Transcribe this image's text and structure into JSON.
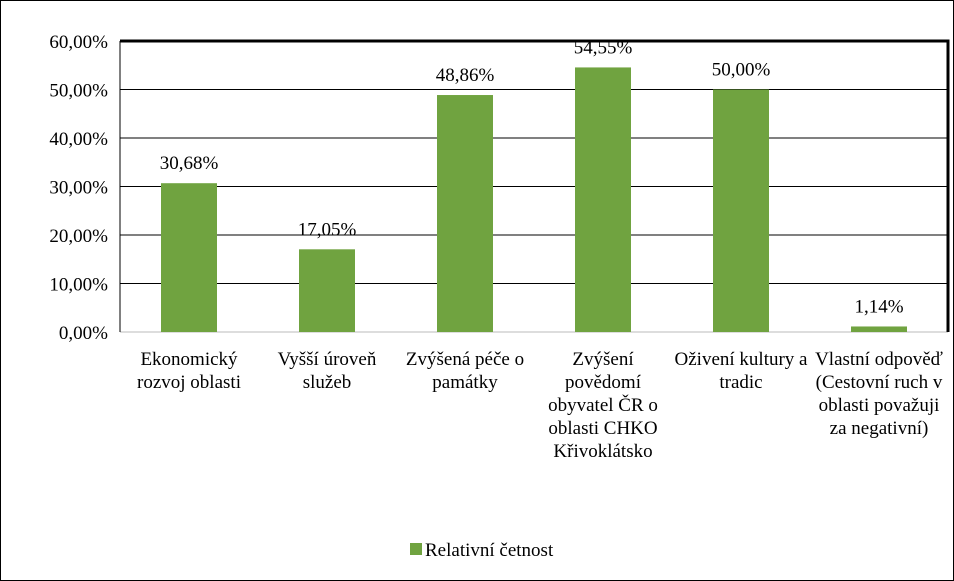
{
  "chart_data": {
    "type": "bar",
    "categories": [
      "Ekonomický rozvoj oblasti",
      "Vyšší úroveň služeb",
      "Zvýšená péče o památky",
      "Zvýšení povědomí obyvatel ČR o oblasti CHKO Křivoklátsko",
      "Oživení kultury a tradic",
      "Vlastní odpověď (Cestovní ruch v oblasti považuji za negativní)"
    ],
    "series": [
      {
        "name": "Relativní četnost",
        "color": "#70a340",
        "values": [
          30.68,
          17.05,
          48.86,
          54.55,
          50.0,
          1.14
        ],
        "value_labels": [
          "30,68%",
          "17,05%",
          "48,86%",
          "54,55%",
          "50,00%",
          "1,14%"
        ]
      }
    ],
    "ylim": [
      0,
      60
    ],
    "yticks": [
      {
        "value": 0,
        "label": "0,00%"
      },
      {
        "value": 10,
        "label": "10,00%"
      },
      {
        "value": 20,
        "label": "20,00%"
      },
      {
        "value": 30,
        "label": "30,00%"
      },
      {
        "value": 40,
        "label": "40,00%"
      },
      {
        "value": 50,
        "label": "50,00%"
      },
      {
        "value": 60,
        "label": "60,00%"
      }
    ],
    "grid": true,
    "legend": "bottom"
  }
}
